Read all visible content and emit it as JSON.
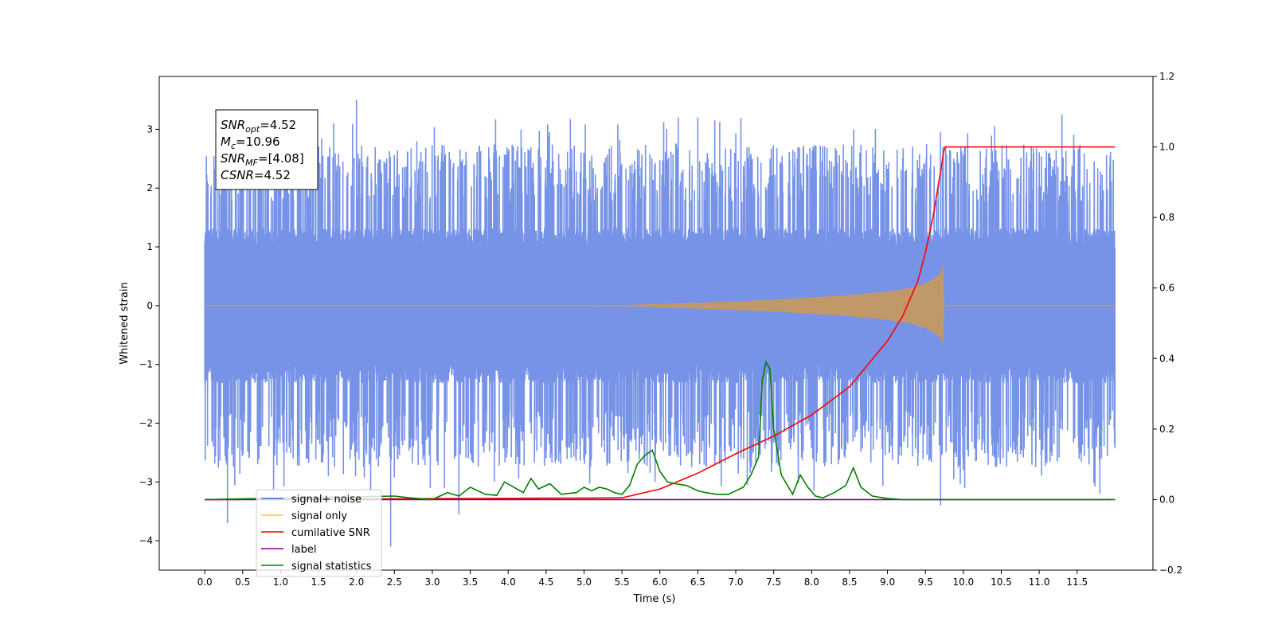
{
  "chart_data": {
    "type": "line",
    "xlabel": "Time (s)",
    "ylabel": "Whitened strain",
    "xlim": [
      -0.6,
      12.5
    ],
    "ylim": [
      -4.5,
      3.9
    ],
    "y2lim": [
      -0.2,
      1.2
    ],
    "x_ticks": [
      "0.0",
      "0.5",
      "1.0",
      "1.5",
      "2.0",
      "2.5",
      "3.0",
      "3.5",
      "4.0",
      "4.5",
      "5.0",
      "5.5",
      "6.0",
      "6.5",
      "7.0",
      "7.5",
      "8.0",
      "8.5",
      "9.0",
      "9.5",
      "10.0",
      "10.5",
      "11.0",
      "11.5"
    ],
    "y_ticks": [
      "3",
      "2",
      "1",
      "0",
      "−1",
      "−2",
      "−3",
      "−4"
    ],
    "y2_ticks": [
      "1.2",
      "1.0",
      "0.8",
      "0.6",
      "0.4",
      "0.2",
      "0.0",
      "−0.2"
    ],
    "annotation": [
      {
        "base": "SNR",
        "sub": "opt",
        "rest": "=4.52"
      },
      {
        "base": "M",
        "sub": "c",
        "rest": "=10.96"
      },
      {
        "base": "SNR",
        "sub": "MF",
        "rest": "=[4.08]"
      },
      {
        "base": "CSNR",
        "sub": "",
        "rest": "=4.52"
      }
    ],
    "legend": {
      "placement": "lower-left",
      "entries": [
        {
          "label": "signal+ noise",
          "color": "#4169e1"
        },
        {
          "label": "signal only",
          "color": "#ffc04d"
        },
        {
          "label": "cumilative SNR",
          "color": "#ff0000"
        },
        {
          "label": "label",
          "color": "#800080"
        },
        {
          "label": "signal statistics",
          "color": "#008000"
        }
      ]
    },
    "series": [
      {
        "name": "signal+ noise",
        "axis": "left",
        "color": "#7793e8",
        "x_range": [
          0.0,
          12.0
        ],
        "band_inner": 1.1,
        "band_outer": 2.2,
        "peaks": [
          [
            2.0,
            3.5
          ],
          [
            11.3,
            3.25
          ],
          [
            0.3,
            -3.7
          ],
          [
            2.45,
            -4.1
          ],
          [
            3.35,
            -3.55
          ],
          [
            9.7,
            -3.4
          ],
          [
            11.8,
            -3.2
          ],
          [
            1.7,
            3.1
          ],
          [
            6.5,
            3.2
          ]
        ]
      },
      {
        "name": "signal only",
        "axis": "left",
        "color": "#ffc04d",
        "fill": "#c0986a",
        "x": [
          0.0,
          5.5,
          6.5,
          7.5,
          8.5,
          9.0,
          9.3,
          9.5,
          9.6,
          9.7,
          9.73,
          9.75,
          12.0
        ],
        "envelope": [
          0.0,
          0.01,
          0.05,
          0.1,
          0.18,
          0.24,
          0.3,
          0.38,
          0.45,
          0.55,
          0.7,
          0.0,
          0.0
        ]
      },
      {
        "name": "cumilative SNR",
        "axis": "right",
        "color": "#ff0000",
        "x": [
          0.0,
          5.5,
          6.0,
          6.5,
          7.0,
          7.5,
          8.0,
          8.5,
          9.0,
          9.2,
          9.4,
          9.5,
          9.6,
          9.7,
          9.75,
          12.0
        ],
        "values": [
          0.0,
          0.005,
          0.03,
          0.075,
          0.13,
          0.18,
          0.24,
          0.32,
          0.45,
          0.52,
          0.62,
          0.7,
          0.8,
          0.93,
          1.0,
          1.0
        ]
      },
      {
        "name": "label",
        "axis": "right",
        "color": "#800080",
        "x": [
          0.0,
          11.95
        ],
        "values": [
          0.0,
          0.0
        ]
      },
      {
        "name": "signal statistics",
        "axis": "right",
        "color": "#008000",
        "x": [
          0.0,
          2.5,
          2.7,
          3.0,
          3.2,
          3.35,
          3.5,
          3.7,
          3.85,
          3.95,
          4.2,
          4.3,
          4.4,
          4.55,
          4.7,
          4.9,
          5.0,
          5.1,
          5.2,
          5.3,
          5.4,
          5.5,
          5.6,
          5.7,
          5.8,
          5.9,
          6.0,
          6.1,
          6.2,
          6.35,
          6.5,
          6.6,
          6.75,
          6.9,
          7.1,
          7.2,
          7.3,
          7.35,
          7.4,
          7.45,
          7.5,
          7.6,
          7.75,
          7.85,
          7.95,
          8.05,
          8.15,
          8.3,
          8.45,
          8.55,
          8.65,
          8.8,
          9.0,
          9.2,
          12.0
        ],
        "values": [
          0.0,
          0.01,
          0.005,
          0.0,
          0.02,
          0.01,
          0.035,
          0.015,
          0.012,
          0.05,
          0.02,
          0.06,
          0.03,
          0.045,
          0.015,
          0.02,
          0.035,
          0.025,
          0.035,
          0.03,
          0.02,
          0.015,
          0.04,
          0.1,
          0.125,
          0.14,
          0.08,
          0.05,
          0.045,
          0.04,
          0.025,
          0.02,
          0.015,
          0.015,
          0.035,
          0.07,
          0.12,
          0.34,
          0.39,
          0.37,
          0.2,
          0.07,
          0.015,
          0.07,
          0.035,
          0.01,
          0.005,
          0.02,
          0.04,
          0.09,
          0.035,
          0.01,
          0.003,
          0.0,
          0.0
        ]
      }
    ]
  }
}
